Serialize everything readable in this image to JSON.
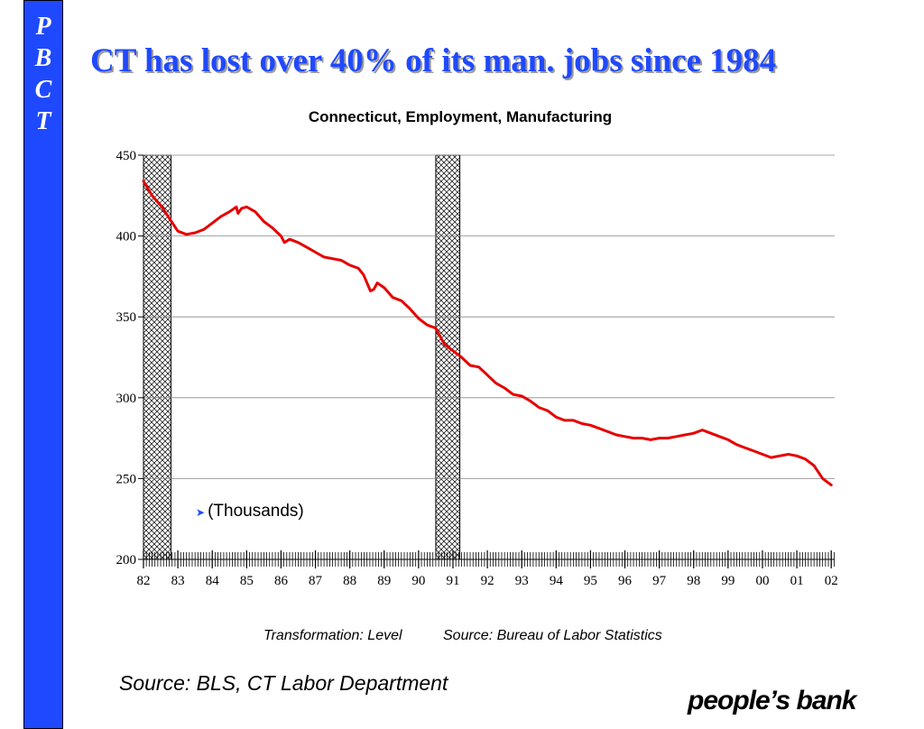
{
  "sidebar": {
    "letters": [
      "P",
      "B",
      "C",
      "T"
    ]
  },
  "title": "CT has lost over 40% of its man. jobs since 1984",
  "units_label": "(Thousands)",
  "transformation_label": "Transformation: Level",
  "chart_source_label": "Source: Bureau of Labor Statistics",
  "footer_source": "Source: BLS, CT Labor Department",
  "logo_text": "people’s bank",
  "colors": {
    "sidebar": "#1f49ff",
    "title": "#1f49ff",
    "line": "#e60000",
    "gridline": "#888888"
  },
  "chart_data": {
    "type": "line",
    "title": "Connecticut, Employment, Manufacturing",
    "xlabel": "",
    "ylabel": "",
    "xlim": [
      1982.0,
      2002.1
    ],
    "ylim": [
      200,
      450
    ],
    "yticks": [
      200,
      250,
      300,
      350,
      400,
      450
    ],
    "xticks": [
      {
        "value": 1982,
        "label": "82"
      },
      {
        "value": 1983,
        "label": "83"
      },
      {
        "value": 1984,
        "label": "84"
      },
      {
        "value": 1985,
        "label": "85"
      },
      {
        "value": 1986,
        "label": "86"
      },
      {
        "value": 1987,
        "label": "87"
      },
      {
        "value": 1988,
        "label": "88"
      },
      {
        "value": 1989,
        "label": "89"
      },
      {
        "value": 1990,
        "label": "90"
      },
      {
        "value": 1991,
        "label": "91"
      },
      {
        "value": 1992,
        "label": "92"
      },
      {
        "value": 1993,
        "label": "93"
      },
      {
        "value": 1994,
        "label": "94"
      },
      {
        "value": 1995,
        "label": "95"
      },
      {
        "value": 1996,
        "label": "96"
      },
      {
        "value": 1997,
        "label": "97"
      },
      {
        "value": 1998,
        "label": "98"
      },
      {
        "value": 1999,
        "label": "99"
      },
      {
        "value": 2000,
        "label": "00"
      },
      {
        "value": 2001,
        "label": "01"
      },
      {
        "value": 2002,
        "label": "02"
      }
    ],
    "recessions": [
      [
        1982.0,
        1982.8
      ],
      [
        1990.5,
        1991.2
      ]
    ],
    "grid": true,
    "series": [
      {
        "color": "#e60000",
        "x": [
          1982.0,
          1982.25,
          1982.5,
          1982.75,
          1983.0,
          1983.25,
          1983.5,
          1983.75,
          1984.0,
          1984.25,
          1984.5,
          1984.7,
          1984.75,
          1984.85,
          1985.0,
          1985.25,
          1985.5,
          1985.75,
          1986.0,
          1986.1,
          1986.25,
          1986.5,
          1986.75,
          1987.0,
          1987.25,
          1987.5,
          1987.75,
          1988.0,
          1988.25,
          1988.4,
          1988.5,
          1988.6,
          1988.7,
          1988.8,
          1989.0,
          1989.25,
          1989.5,
          1989.75,
          1990.0,
          1990.25,
          1990.5,
          1990.75,
          1991.0,
          1991.25,
          1991.5,
          1991.75,
          1992.0,
          1992.25,
          1992.5,
          1992.75,
          1993.0,
          1993.25,
          1993.5,
          1993.75,
          1994.0,
          1994.25,
          1994.5,
          1994.75,
          1995.0,
          1995.25,
          1995.5,
          1995.75,
          1996.0,
          1996.25,
          1996.5,
          1996.75,
          1997.0,
          1997.25,
          1997.5,
          1997.75,
          1998.0,
          1998.25,
          1998.5,
          1998.75,
          1999.0,
          1999.25,
          1999.5,
          1999.75,
          2000.0,
          2000.25,
          2000.5,
          2000.75,
          2001.0,
          2001.25,
          2001.5,
          2001.75,
          2002.0
        ],
        "y": [
          434,
          425,
          419,
          411,
          403,
          401,
          402,
          404,
          408,
          412,
          415,
          418,
          414,
          417,
          418,
          415,
          409,
          405,
          400,
          396,
          398,
          396,
          393,
          390,
          387,
          386,
          385,
          382,
          380,
          376,
          371,
          366,
          367,
          371,
          368,
          362,
          360,
          355,
          349,
          345,
          343,
          333,
          329,
          325,
          320,
          319,
          314,
          309,
          306,
          302,
          301,
          298,
          294,
          292,
          288,
          286,
          286,
          284,
          283,
          281,
          279,
          277,
          276,
          275,
          275,
          274,
          275,
          275,
          276,
          277,
          278,
          280,
          278,
          276,
          274,
          271,
          269,
          267,
          265,
          263,
          264,
          265,
          264,
          262,
          258,
          250,
          246
        ]
      }
    ]
  }
}
